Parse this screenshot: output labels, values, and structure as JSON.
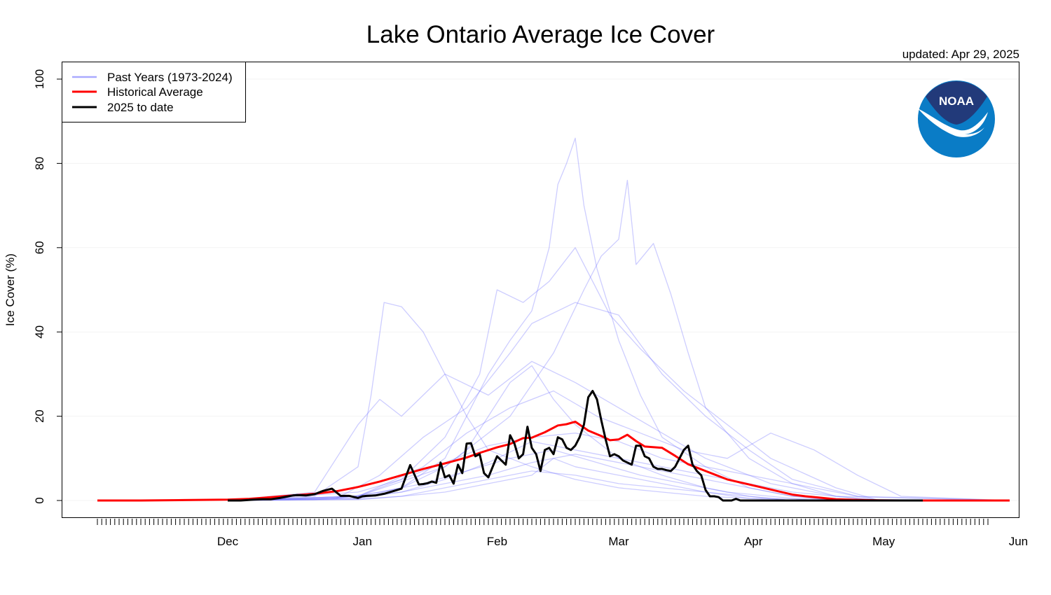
{
  "updated": "updated: Apr 29, 2025",
  "logo_text": "NOAA",
  "colors": {
    "past": "#6f6fff",
    "average": "#ff0000",
    "current": "#000000",
    "logo_dark": "#223a7a",
    "logo_light": "#0a7cc6"
  },
  "chart_data": {
    "type": "line",
    "title": "Lake Ontario Average Ice Cover",
    "ylabel": "Ice Cover (%)",
    "xlabel": "",
    "ylim": [
      0,
      100
    ],
    "yticks": [
      0,
      20,
      40,
      60,
      80,
      100
    ],
    "x_unit": "days since Nov 1",
    "xlim": [
      0,
      210
    ],
    "months": [
      {
        "label": "Dec",
        "day": 30
      },
      {
        "label": "Jan",
        "day": 61
      },
      {
        "label": "Feb",
        "day": 92
      },
      {
        "label": "Mar",
        "day": 120
      },
      {
        "label": "Apr",
        "day": 151
      },
      {
        "label": "May",
        "day": 181
      },
      {
        "label": "Jun",
        "day": 212
      }
    ],
    "grid": true,
    "legend": {
      "position": "top-left",
      "entries": [
        "Past Years (1973-2024)",
        "Historical Average",
        "2025 to date"
      ]
    },
    "series": [
      {
        "name": "Historical Average",
        "x": [
          0,
          10,
          20,
          30,
          35,
          40,
          45,
          50,
          55,
          60,
          65,
          70,
          75,
          80,
          85,
          88,
          92,
          95,
          98,
          100,
          103,
          106,
          108,
          110,
          113,
          116,
          118,
          120,
          122,
          124,
          126,
          130,
          133,
          136,
          140,
          145,
          150,
          155,
          160,
          163,
          166,
          170,
          175,
          180,
          185,
          190,
          195,
          200,
          205,
          210
        ],
        "values": [
          0,
          0,
          0.1,
          0.2,
          0.4,
          0.8,
          1.2,
          1.6,
          2.2,
          3.2,
          4.5,
          6.0,
          7.5,
          8.8,
          10.2,
          11.3,
          12.6,
          13.4,
          14.8,
          14.9,
          16.2,
          17.8,
          18.1,
          18.7,
          16.6,
          15.3,
          14.3,
          14.5,
          15.6,
          14.1,
          12.8,
          12.5,
          10.6,
          8.6,
          7.0,
          5.0,
          3.8,
          2.6,
          1.4,
          1.0,
          0.7,
          0.3,
          0.15,
          0.05,
          0,
          0,
          0,
          0,
          0,
          0
        ]
      },
      {
        "name": "2025 to date",
        "x": [
          30,
          33,
          36,
          38,
          40,
          42,
          44,
          45,
          46,
          48,
          50,
          52,
          54,
          56,
          58,
          60,
          61,
          62,
          64,
          66,
          68,
          70,
          72,
          74,
          75,
          76,
          77,
          78,
          79,
          80,
          81,
          82,
          83,
          84,
          85,
          86,
          87,
          88,
          89,
          90,
          91,
          92,
          93,
          94,
          95,
          96,
          97,
          98,
          99,
          100,
          101,
          102,
          103,
          104,
          105,
          106,
          107,
          108,
          109,
          110,
          111,
          112,
          113,
          114,
          115,
          116,
          117,
          118,
          119,
          120,
          121,
          122,
          123,
          124,
          125,
          126,
          127,
          128,
          129,
          130,
          131,
          132,
          133,
          134,
          135,
          136,
          137,
          138,
          139,
          140,
          141,
          142,
          143,
          144,
          145,
          146,
          147,
          148,
          150,
          155,
          160,
          165,
          170,
          175,
          180,
          182,
          185,
          190
        ],
        "values": [
          0,
          0,
          0.2,
          0.3,
          0.3,
          0.6,
          1.0,
          1.2,
          1.3,
          1.2,
          1.5,
          2.3,
          2.8,
          1.1,
          1.1,
          0.6,
          1.0,
          1.1,
          1.2,
          1.6,
          2.2,
          2.8,
          8.4,
          3.8,
          3.9,
          4.1,
          4.5,
          4.2,
          9.0,
          5.5,
          6.0,
          4.0,
          8.5,
          6.5,
          13.5,
          13.6,
          10.5,
          11.0,
          6.5,
          5.5,
          8.0,
          10.5,
          9.5,
          8.5,
          15.5,
          13.5,
          10.0,
          11.0,
          17.5,
          12.5,
          11.0,
          7.0,
          12.0,
          12.5,
          11.0,
          15.0,
          14.5,
          12.5,
          12.0,
          13.0,
          15.0,
          18.0,
          24.5,
          26.0,
          24.0,
          19.0,
          14.5,
          10.5,
          11.0,
          10.5,
          9.5,
          9.0,
          8.5,
          13.0,
          13.0,
          10.5,
          10.0,
          8.0,
          7.5,
          7.5,
          7.2,
          7.0,
          8.0,
          10.0,
          12.0,
          13.0,
          8.5,
          7.0,
          6.0,
          2.5,
          1.0,
          1.0,
          0.8,
          0,
          0,
          0,
          0.4,
          0,
          0,
          0,
          0,
          0,
          0,
          0,
          0,
          0,
          0,
          0
        ]
      },
      {
        "name": "",
        "x": [
          30,
          50,
          60,
          63,
          66,
          70,
          75,
          80,
          85,
          90,
          100,
          110,
          120,
          130,
          140,
          150,
          160,
          180,
          210
        ],
        "values": [
          0,
          1,
          8,
          25,
          47,
          46,
          40,
          30,
          20,
          12,
          8,
          5,
          3,
          2,
          1,
          0.5,
          0,
          0,
          0
        ]
      },
      {
        "name": "",
        "x": [
          30,
          60,
          70,
          80,
          85,
          90,
          95,
          100,
          104,
          106,
          108,
          110,
          112,
          115,
          118,
          120,
          125,
          130,
          140,
          150,
          160,
          180,
          210
        ],
        "values": [
          0,
          1,
          3,
          10,
          20,
          30,
          38,
          45,
          60,
          75,
          80,
          86,
          70,
          55,
          45,
          38,
          25,
          15,
          8,
          3,
          1,
          0,
          0
        ]
      },
      {
        "name": "",
        "x": [
          30,
          60,
          80,
          95,
          105,
          112,
          116,
          120,
          122,
          124,
          128,
          132,
          136,
          140,
          150,
          160,
          170,
          180,
          210
        ],
        "values": [
          0,
          1,
          8,
          20,
          35,
          50,
          58,
          62,
          76,
          56,
          61,
          49,
          35,
          22,
          10,
          4,
          1,
          0,
          0
        ]
      },
      {
        "name": "",
        "x": [
          30,
          60,
          70,
          80,
          88,
          92,
          98,
          104,
          110,
          118,
          125,
          135,
          145,
          155,
          170,
          180,
          210
        ],
        "values": [
          0,
          1,
          5,
          15,
          30,
          50,
          47,
          52,
          60,
          44,
          36,
          26,
          18,
          10,
          3,
          0,
          0
        ]
      },
      {
        "name": "",
        "x": [
          30,
          55,
          65,
          75,
          85,
          95,
          100,
          110,
          120,
          130,
          140,
          150,
          160,
          175,
          210
        ],
        "values": [
          0,
          0.5,
          6,
          15,
          22,
          35,
          42,
          47,
          44,
          30,
          20,
          12,
          5,
          1,
          0
        ]
      },
      {
        "name": "",
        "x": [
          30,
          50,
          55,
          60,
          65,
          70,
          80,
          90,
          100,
          110,
          120,
          130,
          140,
          155,
          170,
          210
        ],
        "values": [
          0,
          2,
          10,
          18,
          24,
          20,
          30,
          25,
          33,
          28,
          22,
          16,
          10,
          4,
          1,
          0
        ]
      },
      {
        "name": "",
        "x": [
          30,
          60,
          70,
          80,
          85,
          90,
          95,
          100,
          105,
          110,
          115,
          120,
          125,
          130,
          140,
          150,
          160,
          210
        ],
        "values": [
          0,
          0.5,
          3,
          8,
          12,
          20,
          28,
          32,
          24,
          18,
          14,
          10,
          8,
          6,
          3,
          1,
          0,
          0
        ]
      },
      {
        "name": "",
        "x": [
          30,
          60,
          70,
          80,
          90,
          100,
          110,
          120,
          130,
          140,
          150,
          160,
          170,
          180,
          210
        ],
        "values": [
          0,
          0.5,
          2,
          5,
          9,
          14,
          12,
          10,
          8,
          6,
          4,
          2,
          1,
          0,
          0
        ]
      },
      {
        "name": "",
        "x": [
          30,
          60,
          70,
          80,
          90,
          100,
          110,
          120,
          130,
          140,
          150,
          160,
          210
        ],
        "values": [
          0,
          0.3,
          1,
          3,
          5,
          7,
          6,
          4,
          3,
          2,
          1,
          0,
          0
        ]
      },
      {
        "name": "",
        "x": [
          30,
          50,
          60,
          70,
          80,
          90,
          100,
          110,
          120,
          130,
          140,
          150,
          160,
          170,
          210
        ],
        "values": [
          0,
          0.2,
          1,
          2,
          4,
          6,
          9,
          11,
          9,
          7,
          5,
          3,
          1,
          0,
          0
        ]
      },
      {
        "name": "",
        "x": [
          30,
          60,
          75,
          85,
          95,
          105,
          115,
          125,
          135,
          145,
          155,
          165,
          175,
          185,
          210
        ],
        "values": [
          0,
          1,
          8,
          16,
          22,
          26,
          20,
          16,
          12,
          10,
          16,
          12,
          6,
          1,
          0
        ]
      },
      {
        "name": "",
        "x": [
          30,
          60,
          70,
          80,
          90,
          100,
          110,
          120,
          130,
          140,
          150,
          160,
          170,
          180,
          210
        ],
        "values": [
          0,
          2,
          5,
          9,
          13,
          15,
          16,
          14,
          10,
          8,
          6,
          4,
          2,
          0,
          0
        ]
      },
      {
        "name": "",
        "x": [
          30,
          55,
          65,
          75,
          85,
          95,
          105,
          115,
          125,
          135,
          145,
          155,
          165,
          210
        ],
        "values": [
          0,
          0.5,
          2,
          4,
          7,
          10,
          12,
          9,
          6,
          4,
          2,
          1,
          0,
          0
        ]
      },
      {
        "name": "",
        "x": [
          30,
          60,
          70,
          80,
          90,
          100,
          105,
          110,
          115,
          120,
          125,
          130,
          140,
          150,
          210
        ],
        "values": [
          0,
          0.2,
          1,
          2,
          4,
          6,
          10,
          8,
          7,
          6,
          5,
          4,
          2,
          0.5,
          0
        ]
      }
    ]
  }
}
